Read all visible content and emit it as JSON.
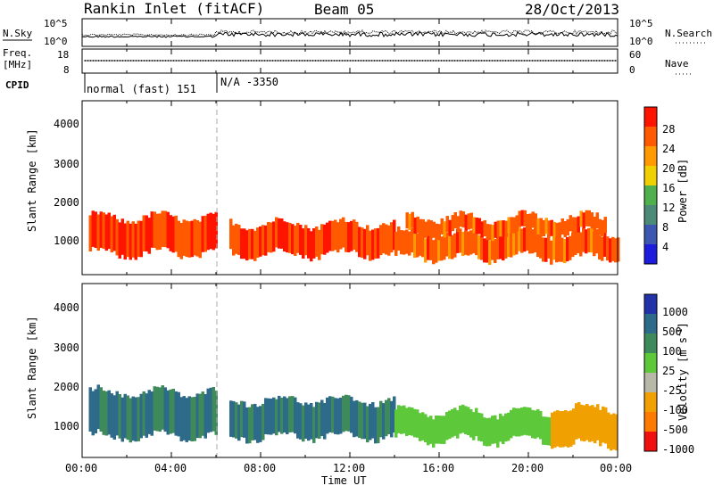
{
  "header": {
    "station": "Rankin Inlet (fitACF)",
    "beam": "Beam 05",
    "date": "28/Oct/2013"
  },
  "noise_panel": {
    "left_label": "N.Sky",
    "left_ticks": [
      "10^5",
      "10^0"
    ],
    "right_label": "N.Search",
    "right_ticks": [
      "10^5",
      "10^0"
    ]
  },
  "freq_panel": {
    "left_label_1": "Freq.",
    "left_label_2": "[MHz]",
    "left_ticks": [
      "18",
      "8"
    ],
    "right_label": "Nave",
    "right_ticks": [
      "60",
      "0"
    ]
  },
  "cpid": {
    "label": "CPID",
    "segment_1": "normal (fast) 151",
    "segment_2": "N/A -3350"
  },
  "x_axis": {
    "label": "Time UT",
    "ticks": [
      "00:00",
      "04:00",
      "08:00",
      "12:00",
      "16:00",
      "20:00",
      "00:00"
    ]
  },
  "power_panel": {
    "ylabel": "Slant Range [km]",
    "yticks": [
      "1000",
      "2000",
      "3000",
      "4000"
    ],
    "colorbar_label": "Power [dB]",
    "colorbar_ticks": [
      "4",
      "8",
      "12",
      "16",
      "20",
      "24",
      "28"
    ]
  },
  "velocity_panel": {
    "ylabel": "Slant Range [km]",
    "yticks": [
      "1000",
      "2000",
      "3000",
      "4000"
    ],
    "colorbar_label": "Velocity [m s",
    "colorbar_label_sup": "-1",
    "colorbar_label_end": "]",
    "colorbar_ticks": [
      "1000",
      "500",
      "100",
      "25",
      "-25",
      "-100",
      "-500",
      "-1000"
    ]
  },
  "chart_data": [
    {
      "type": "heatmap",
      "title": "Power",
      "x_range_hours": [
        0,
        24
      ],
      "y_range_km": [
        180,
        4500
      ],
      "colorbar": {
        "label": "Power [dB]",
        "range": [
          0,
          32
        ],
        "colors": [
          "#1c1cdc",
          "#3d56b0",
          "#4c8a78",
          "#4fb04d",
          "#f0d000",
          "#ff9a00",
          "#ff5a00",
          "#ff1400"
        ]
      },
      "bands": [
        {
          "t0": 0.3,
          "t1": 6.0,
          "r0": 700,
          "r1": 1600,
          "value": 28
        },
        {
          "t0": 6.6,
          "t1": 14.0,
          "r0": 700,
          "r1": 1450,
          "value": 28
        },
        {
          "t0": 14.0,
          "t1": 24.0,
          "r0": 600,
          "r1": 1200,
          "value": 26
        },
        {
          "t0": 14.5,
          "t1": 23.5,
          "r0": 1200,
          "r1": 1600,
          "value": 26
        }
      ]
    },
    {
      "type": "heatmap",
      "title": "Velocity",
      "x_range_hours": [
        0,
        24
      ],
      "y_range_km": [
        180,
        4500
      ],
      "colorbar": {
        "label": "Velocity [m s-1]",
        "range": [
          -1000,
          1000
        ],
        "levels": [
          1000,
          500,
          100,
          25,
          -25,
          -100,
          -500,
          -1000
        ],
        "colors": [
          "#2233aa",
          "#2e6a8a",
          "#3f8a5a",
          "#5cc83a",
          "#b8b8a8",
          "#f0a000",
          "#ff7a00",
          "#f01010"
        ]
      },
      "bands": [
        {
          "t0": 0.3,
          "t1": 6.0,
          "r0": 700,
          "r1": 1800,
          "value": 100
        },
        {
          "t0": 6.6,
          "t1": 14.0,
          "r0": 700,
          "r1": 1600,
          "value": 100
        },
        {
          "t0": 14.0,
          "t1": 21.5,
          "r0": 600,
          "r1": 1300,
          "value": 0
        },
        {
          "t0": 21.0,
          "t1": 24.0,
          "r0": 500,
          "r1": 1400,
          "value": -300
        }
      ]
    }
  ]
}
